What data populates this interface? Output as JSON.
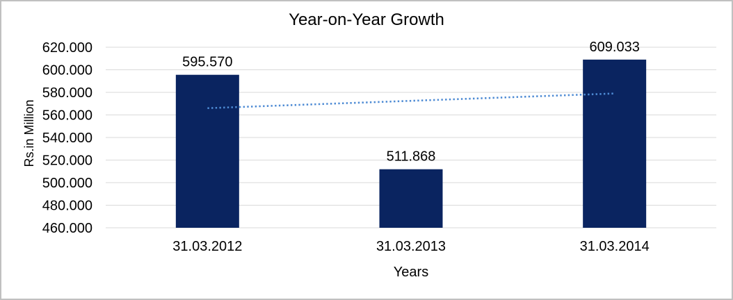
{
  "chart_data": {
    "type": "bar",
    "title": "Year-on-Year Growth",
    "xlabel": "Years",
    "ylabel": "Rs.in Million",
    "categories": [
      "31.03.2012",
      "31.03.2013",
      "31.03.2014"
    ],
    "values": [
      595.57,
      511.868,
      609.033
    ],
    "value_labels": [
      "595.570",
      "511.868",
      "609.033"
    ],
    "ylim": [
      460,
      620
    ],
    "y_tick_values": [
      460,
      480,
      500,
      520,
      540,
      560,
      580,
      600,
      620
    ],
    "y_tick_labels": [
      "460.000",
      "480.000",
      "500.000",
      "520.000",
      "540.000",
      "560.000",
      "580.000",
      "600.000",
      "620.000"
    ],
    "grid": true,
    "legend": "none",
    "trendline": {
      "type": "linear",
      "style": "dotted",
      "start_value": 566,
      "end_value": 579
    }
  },
  "colors": {
    "bar": "#0A2460",
    "trendline": "#4E8BD4",
    "gridline": "#D9D9D9",
    "text": "#000000",
    "frame_border": "#C0C0C0",
    "background": "#FFFFFF"
  }
}
